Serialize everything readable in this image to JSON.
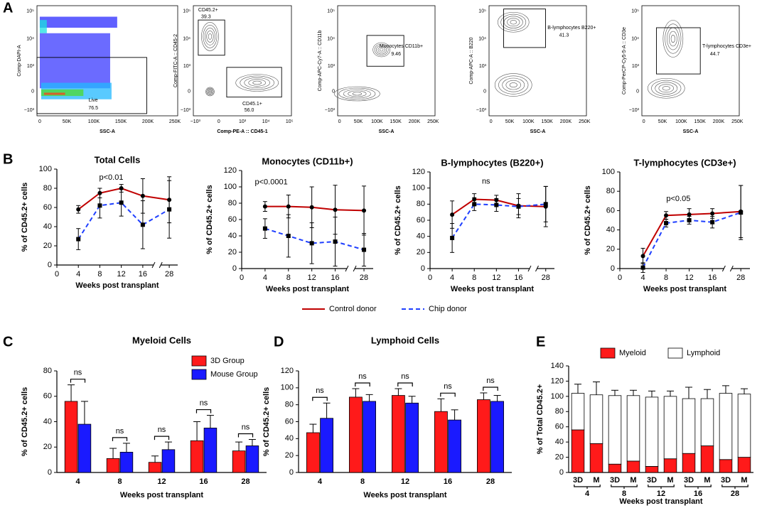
{
  "panel_labels": [
    "A",
    "B",
    "C",
    "D",
    "E"
  ],
  "flow_plots": [
    {
      "ylabel": "Comp-DAPI-A",
      "xlabel": "SSC-A",
      "yticks": [
        "10⁵",
        "10⁴",
        "10³",
        "0",
        "−10³"
      ],
      "xticks": [
        "0",
        "50K",
        "100K",
        "150K",
        "200K",
        "250K"
      ],
      "gates": [
        {
          "name": "Live",
          "value": "76.5"
        }
      ]
    },
    {
      "ylabel": "Comp-FITC-A :: CD45-2",
      "xlabel": "Comp-PE-A :: CD45-1",
      "yticks": [
        "10⁵",
        "10⁴",
        "10³",
        "0",
        "−10³"
      ],
      "xticks": [
        "−10³",
        "0",
        "10³",
        "10⁴",
        "10⁵"
      ],
      "gates": [
        {
          "name": "CD45.2+",
          "value": "39.3"
        },
        {
          "name": "CD45.1+",
          "value": "56.0"
        }
      ]
    },
    {
      "ylabel": "Comp-APC-Cy7-A :: CD11b",
      "xlabel": "SSC-A",
      "yticks": [
        "10⁵",
        "10⁴",
        "10³",
        "0",
        "−10³"
      ],
      "xticks": [
        "0",
        "50K",
        "100K",
        "150K",
        "200K",
        "250K"
      ],
      "gates": [
        {
          "name": "Monocytes CD11b+",
          "value": "9.46"
        }
      ]
    },
    {
      "ylabel": "Comp-APC-A :: B220",
      "xlabel": "SSC-A",
      "yticks": [
        "10⁵",
        "10⁴",
        "10³",
        "0",
        "−10³"
      ],
      "xticks": [
        "0",
        "50K",
        "100K",
        "150K",
        "200K",
        "250K"
      ],
      "gates": [
        {
          "name": "B-lymphocytes B220+",
          "value": "41.3"
        }
      ]
    },
    {
      "ylabel": "Comp-PerCP-Cy5-5-A :: CD3e",
      "xlabel": "SSC-A",
      "yticks": [
        "10⁵",
        "10⁴",
        "10³",
        "0",
        "−10³"
      ],
      "xticks": [
        "0",
        "50K",
        "100K",
        "150K",
        "200K",
        "250K"
      ],
      "gates": [
        {
          "name": "T-lymphocytes CD3e+",
          "value": "44.7"
        }
      ]
    }
  ],
  "chart_data": [
    {
      "type": "line",
      "title": "Total Cells",
      "annotation": "p<0.01",
      "x": [
        4,
        8,
        12,
        16,
        28
      ],
      "xlim": [
        0,
        30
      ],
      "xbreak": [
        18,
        26
      ],
      "xticks": [
        0,
        4,
        8,
        12,
        16,
        28
      ],
      "ylim": [
        0,
        100
      ],
      "yticks": [
        0,
        20,
        40,
        60,
        80,
        100
      ],
      "ylabel": "% of CD45.2+ cells",
      "xlabel": "Weeks post transplant",
      "series": [
        {
          "name": "Control donor",
          "color": "#c00000",
          "values": [
            58,
            75,
            80,
            72,
            68
          ],
          "errors": [
            4,
            5,
            4,
            18,
            24
          ]
        },
        {
          "name": "Chip donor",
          "color": "#1f3fff",
          "dashed": true,
          "values": [
            27,
            62,
            65,
            42,
            58
          ],
          "errors": [
            11,
            13,
            14,
            25,
            30
          ]
        }
      ]
    },
    {
      "type": "line",
      "title": "Monocytes (CD11b+)",
      "annotation": "p<0.0001",
      "x": [
        4,
        8,
        12,
        16,
        28
      ],
      "xlim": [
        0,
        30
      ],
      "xbreak": [
        18,
        26
      ],
      "xticks": [
        0,
        4,
        8,
        12,
        16,
        28
      ],
      "ylim": [
        0,
        120
      ],
      "yticks": [
        0,
        20,
        40,
        60,
        80,
        100,
        120
      ],
      "ylabel": "% of CD45.2+ cells",
      "xlabel": "Weeks post transplant",
      "series": [
        {
          "color": "#c00000",
          "values": [
            76,
            76,
            75,
            72,
            71
          ],
          "errors": [
            6,
            14,
            25,
            30,
            30
          ]
        },
        {
          "color": "#1f3fff",
          "dashed": true,
          "values": [
            49,
            40,
            31,
            33,
            23
          ],
          "errors": [
            12,
            26,
            25,
            30,
            20
          ]
        }
      ]
    },
    {
      "type": "line",
      "title": "B-lymphocytes (B220+)",
      "annotation": "ns",
      "x": [
        4,
        8,
        12,
        16,
        28
      ],
      "xlim": [
        0,
        30
      ],
      "xbreak": [
        18,
        26
      ],
      "xticks": [
        0,
        4,
        8,
        12,
        16,
        28
      ],
      "ylim": [
        0,
        120
      ],
      "yticks": [
        0,
        20,
        40,
        60,
        80,
        100,
        120
      ],
      "ylabel": "% of CD45.2+ cells",
      "xlabel": "Weeks post transplant",
      "series": [
        {
          "color": "#c00000",
          "values": [
            67,
            86,
            85,
            78,
            77
          ],
          "errors": [
            17,
            7,
            6,
            15,
            25
          ]
        },
        {
          "color": "#1f3fff",
          "dashed": true,
          "values": [
            38,
            80,
            79,
            77,
            80
          ],
          "errors": [
            18,
            8,
            8,
            10,
            22
          ]
        }
      ]
    },
    {
      "type": "line",
      "title": "T-lymphocytes (CD3e+)",
      "annotation": "p<0.05",
      "x": [
        4,
        8,
        12,
        16,
        28
      ],
      "xlim": [
        0,
        30
      ],
      "xbreak": [
        18,
        26
      ],
      "xticks": [
        0,
        4,
        8,
        12,
        16,
        28
      ],
      "ylim": [
        0,
        100
      ],
      "yticks": [
        0,
        20,
        40,
        60,
        80,
        100
      ],
      "ylabel": "% of CD45.2+ cells",
      "xlabel": "Weeks post transplant",
      "series": [
        {
          "color": "#c00000",
          "values": [
            13,
            55,
            56,
            57,
            59
          ],
          "errors": [
            8,
            4,
            6,
            5,
            27
          ]
        },
        {
          "color": "#1f3fff",
          "dashed": true,
          "values": [
            1,
            47,
            50,
            48,
            58
          ],
          "errors": [
            5,
            4,
            4,
            6,
            28
          ]
        }
      ]
    },
    {
      "type": "bar",
      "title": "Myeloid Cells",
      "categories": [
        "4",
        "8",
        "12",
        "16",
        "28"
      ],
      "ylim": [
        0,
        80
      ],
      "yticks": [
        0,
        20,
        40,
        60,
        80
      ],
      "ylabel": "% of CD45.2+ cells",
      "xlabel": "Weeks post transplant",
      "annotations": [
        "ns",
        "ns",
        "ns",
        "ns",
        "ns"
      ],
      "legend": true,
      "series": [
        {
          "name": "3D Group",
          "color": "#ff1a1a",
          "values": [
            56,
            11,
            8,
            25,
            17
          ],
          "errors": [
            13,
            8,
            5,
            15,
            7
          ]
        },
        {
          "name": "Mouse Group",
          "color": "#1a1aff",
          "values": [
            38,
            16,
            18,
            35,
            21
          ],
          "errors": [
            18,
            7,
            6,
            10,
            5
          ]
        }
      ]
    },
    {
      "type": "bar",
      "title": "Lymphoid Cells",
      "categories": [
        "4",
        "8",
        "12",
        "16",
        "28"
      ],
      "ylim": [
        0,
        120
      ],
      "yticks": [
        0,
        20,
        40,
        60,
        80,
        100,
        120
      ],
      "ylabel": "% of CD45.2+ cells",
      "xlabel": "Weeks post  transplant",
      "annotations": [
        "ns",
        "ns",
        "ns",
        "ns",
        "ns"
      ],
      "series": [
        {
          "color": "#ff1a1a",
          "values": [
            47,
            89,
            91,
            72,
            86
          ],
          "errors": [
            10,
            10,
            8,
            15,
            8
          ]
        },
        {
          "color": "#1a1aff",
          "values": [
            64,
            84,
            82,
            62,
            84
          ],
          "errors": [
            18,
            8,
            8,
            12,
            7
          ]
        }
      ]
    },
    {
      "type": "stacked_bar",
      "categories": [
        "3D",
        "M",
        "3D",
        "M",
        "3D",
        "M",
        "3D",
        "M",
        "3D",
        "M"
      ],
      "groups": [
        "4",
        "8",
        "12",
        "16",
        "28"
      ],
      "ylim": [
        0,
        140
      ],
      "yticks": [
        0,
        20,
        40,
        60,
        80,
        100,
        120,
        140
      ],
      "ylabel": "% of Total CD45.2+",
      "xlabel": "Weeks post transplant",
      "series": [
        {
          "name": "Myeloid",
          "color": "#ff1a1a",
          "values": [
            56,
            38,
            11,
            15,
            8,
            18,
            25,
            35,
            17,
            20
          ],
          "errors": [
            13,
            18,
            8,
            7,
            5,
            6,
            15,
            10,
            7,
            5
          ]
        },
        {
          "name": "Lymphoid",
          "color": "#ffffff",
          "values": [
            48,
            64,
            90,
            86,
            91,
            82,
            72,
            62,
            87,
            83
          ],
          "errors": [
            12,
            17,
            7,
            7,
            8,
            7,
            15,
            12,
            10,
            7
          ]
        }
      ]
    }
  ]
}
